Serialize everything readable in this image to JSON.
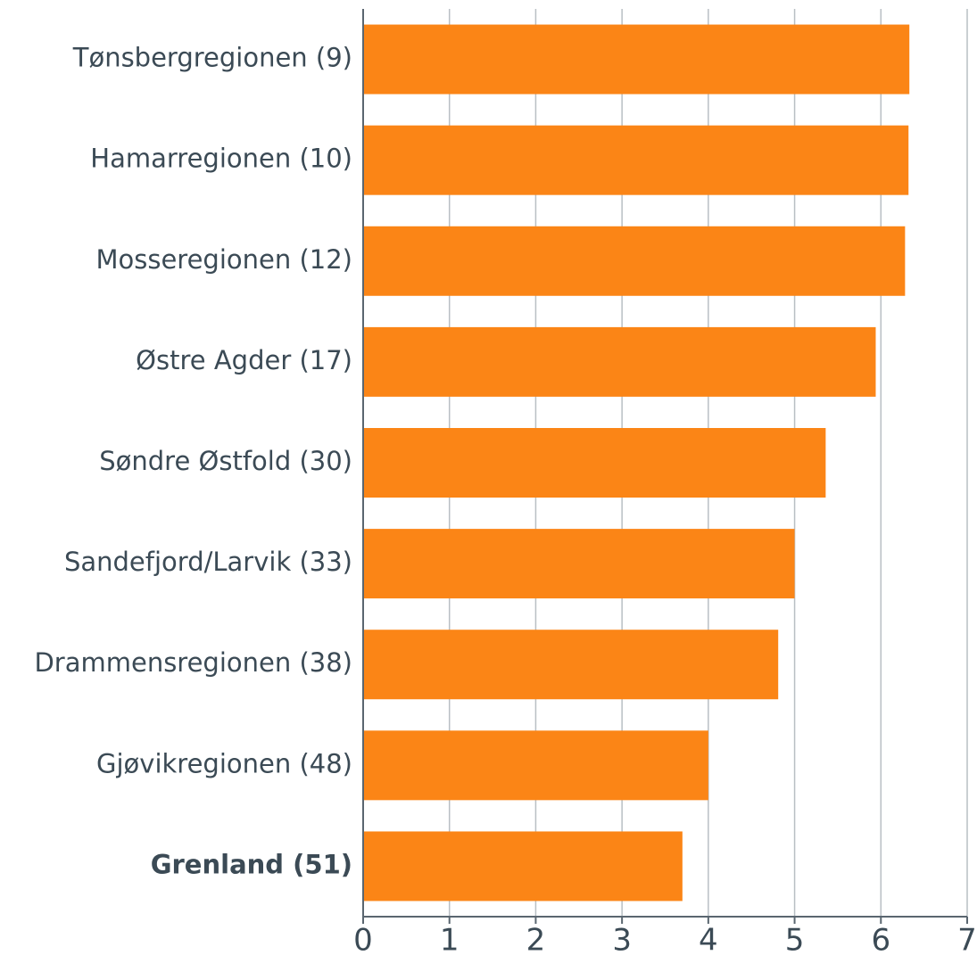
{
  "chart_data": {
    "type": "bar",
    "orientation": "horizontal",
    "categories": [
      "Tønsbergregionen (9)",
      "Hamarregionen (10)",
      "Mosseregionen (12)",
      "Østre Agder (17)",
      "Søndre Østfold (30)",
      "Sandefjord/Larvik (33)",
      "Drammensregionen (38)",
      "Gjøvikregionen (48)",
      "Grenland (51)"
    ],
    "values": [
      6.33,
      6.32,
      6.28,
      5.94,
      5.36,
      5.0,
      4.81,
      4.0,
      3.7
    ],
    "color": "#fb8516",
    "highlight_index": 8,
    "xlim": [
      0,
      7
    ],
    "xticks": [
      0,
      1,
      2,
      3,
      4,
      5,
      6,
      7
    ],
    "grid": true
  }
}
